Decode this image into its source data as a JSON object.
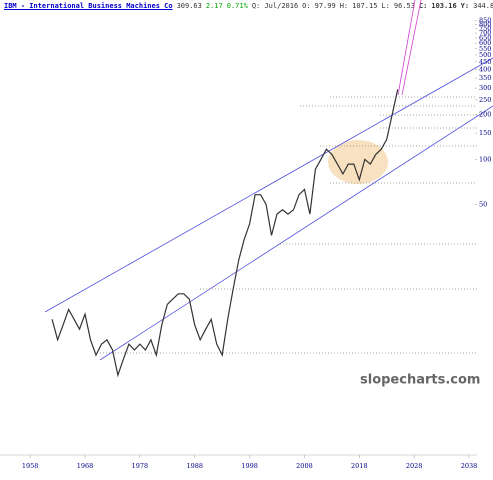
{
  "chart_data": {
    "type": "line",
    "header": [
      "IBM - International Business Machines Co",
      "309.63",
      "2.17",
      "0.71%",
      "Q: Jul/2016",
      "O:",
      "97.99",
      "H:",
      "107.15",
      "L:",
      "96.53",
      "C:",
      "103.16",
      "Y:",
      "344.8"
    ],
    "watermark": "slopecharts.com",
    "x": [
      1962,
      1963,
      1964,
      1965,
      1966,
      1967,
      1968,
      1969,
      1970,
      1971,
      1972,
      1973,
      1974,
      1975,
      1976,
      1977,
      1978,
      1979,
      1980,
      1981,
      1982,
      1983,
      1984,
      1985,
      1986,
      1987,
      1988,
      1989,
      1990,
      1991,
      1992,
      1993,
      1994,
      1995,
      1996,
      1997,
      1998,
      1999,
      2000,
      2001,
      2002,
      2003,
      2004,
      2005,
      2006,
      2007,
      2008,
      2009,
      2010,
      2011,
      2012,
      2013,
      2014,
      2015,
      2016,
      2017,
      2018,
      2019,
      2020,
      2021,
      2022,
      2023,
      2024,
      2025
    ],
    "series": [
      {
        "name": "IBM",
        "color": "#333333",
        "values": [
          8.5,
          6.2,
          7.8,
          9.9,
          8.5,
          7.3,
          9.2,
          6.2,
          4.9,
          5.8,
          6.2,
          5.3,
          3.6,
          4.6,
          5.8,
          5.3,
          5.8,
          5.3,
          6.2,
          4.9,
          7.8,
          10.7,
          11.6,
          12.6,
          12.6,
          11.6,
          7.8,
          6.2,
          7.3,
          8.5,
          5.8,
          4.9,
          8.5,
          13.5,
          21,
          29,
          37,
          58,
          58,
          50,
          31,
          43,
          46,
          43,
          46,
          58,
          63,
          43,
          86,
          100,
          117,
          108,
          93,
          80,
          93,
          93,
          73,
          100,
          93,
          108,
          117,
          136,
          200,
          294
        ]
      }
    ],
    "xlim": [
      1952.5,
      2040
    ],
    "xticks": [
      1958,
      1968,
      1978,
      1988,
      1998,
      2008,
      2018,
      2028,
      2038
    ],
    "ylim": [
      1.05,
      1000
    ],
    "log_y": true,
    "yticks": [
      850,
      800,
      750,
      700,
      650,
      600,
      550,
      500,
      450,
      400,
      350,
      300,
      250,
      200,
      150,
      100,
      50
    ]
  }
}
